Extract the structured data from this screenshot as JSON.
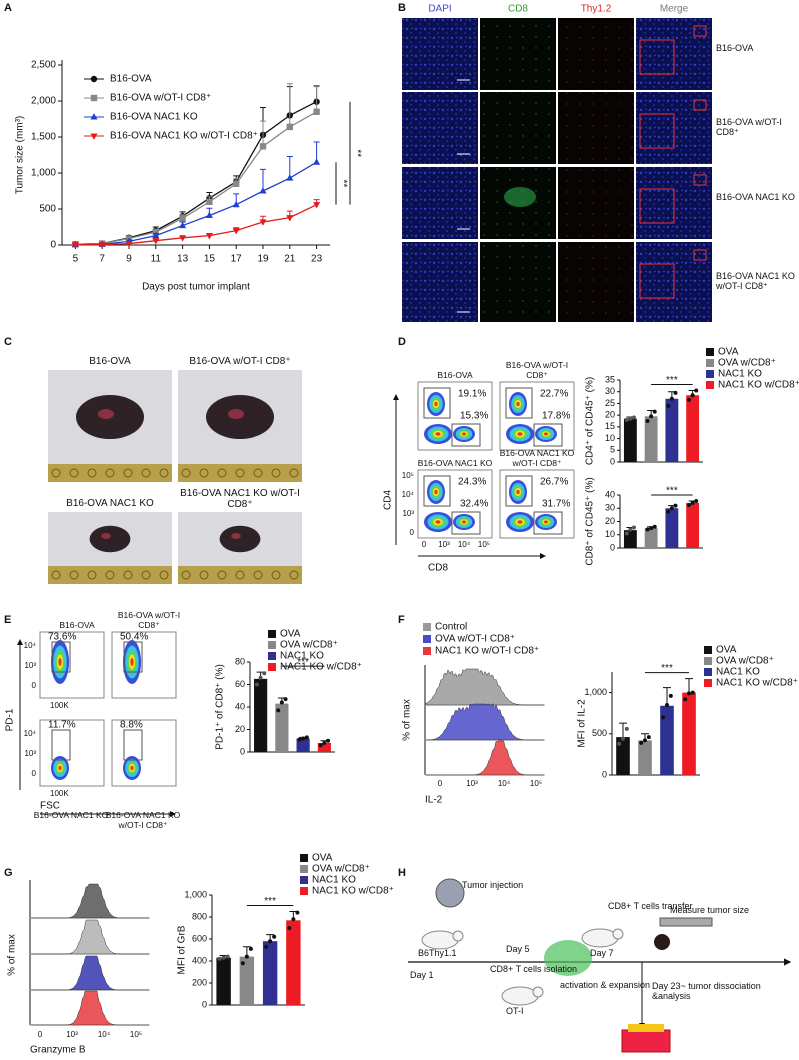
{
  "panels": [
    "A",
    "B",
    "C",
    "D",
    "E",
    "F",
    "G",
    "H"
  ],
  "chart_data": [
    {
      "type": "line",
      "y_label": "Tumor size (mm³)",
      "x_label": "Days post tumor implant",
      "x": [
        5,
        7,
        9,
        11,
        13,
        15,
        17,
        19,
        21,
        23
      ],
      "xlim": [
        4,
        24
      ],
      "xticks": [
        5,
        7,
        9,
        11,
        13,
        15,
        17,
        19,
        21,
        23
      ],
      "ylim": [
        0,
        2500
      ],
      "yticks": [
        0,
        500,
        {
          "value": 1000,
          "label": "1,000"
        },
        {
          "value": 1500,
          "label": "1,500"
        },
        {
          "value": 2000,
          "label": "2,000"
        },
        {
          "value": 2500,
          "label": "2,500"
        }
      ],
      "series": [
        {
          "name": "B16-OVA",
          "color": "#111111",
          "marker": "circle",
          "values": [
            10,
            20,
            100,
            200,
            400,
            650,
            880,
            1530,
            1800,
            1990
          ],
          "errors": [
            5,
            10,
            30,
            50,
            60,
            80,
            80,
            380,
            400,
            220
          ]
        },
        {
          "name": "B16-OVA w/OT-I CD8⁺",
          "color": "#888888",
          "marker": "square",
          "values": [
            10,
            20,
            90,
            180,
            370,
            600,
            850,
            1370,
            1640,
            1850
          ],
          "errors": [
            5,
            10,
            30,
            40,
            50,
            70,
            70,
            350,
            600,
            350
          ]
        },
        {
          "name": "B16-OVA NAC1 KO",
          "color": "#1f3fd1",
          "marker": "triangle",
          "values": [
            5,
            10,
            50,
            130,
            270,
            410,
            560,
            750,
            930,
            1150
          ],
          "errors": [
            5,
            5,
            20,
            30,
            50,
            100,
            150,
            300,
            300,
            280
          ]
        },
        {
          "name": "B16-OVA NAC1 KO w/OT-I CD8⁺",
          "color": "#e41a1c",
          "marker": "triangle-down",
          "values": [
            5,
            5,
            20,
            60,
            100,
            130,
            200,
            320,
            380,
            560
          ],
          "errors": [
            3,
            3,
            10,
            20,
            20,
            30,
            40,
            80,
            90,
            70
          ]
        }
      ],
      "annotations": [
        "**",
        "**"
      ]
    },
    {
      "type": "bar",
      "y_label": "CD4⁺ of CD45⁺ (%)",
      "categories": [
        "OVA",
        "OVA w/CD8⁺",
        "NAC1 KO",
        "NAC1 KO w/CD8⁺"
      ],
      "colors": [
        "#111111",
        "#888888",
        "#2e3192",
        "#ed1c24"
      ],
      "values": [
        18.5,
        19.5,
        27,
        28.5
      ],
      "errors": [
        0.7,
        2.5,
        3,
        2
      ],
      "points": [
        [
          18,
          18.5,
          19
        ],
        [
          17.5,
          19.5,
          21.5
        ],
        [
          24,
          27,
          29.5
        ],
        [
          26.5,
          28.5,
          30.5
        ]
      ],
      "ylim": [
        0,
        35
      ],
      "yticks": [
        0,
        5,
        10,
        15,
        20,
        25,
        30,
        35
      ],
      "annotation": "***"
    },
    {
      "type": "bar",
      "y_label": "CD8⁺ of CD45⁺ (%)",
      "colors": [
        "#111111",
        "#888888",
        "#2e3192",
        "#ed1c24"
      ],
      "values": [
        13.5,
        15,
        30,
        34
      ],
      "errors": [
        2,
        1,
        2,
        1.5
      ],
      "points": [
        [
          11,
          14,
          15.5
        ],
        [
          14,
          15,
          16
        ],
        [
          27.5,
          30,
          32
        ],
        [
          32.5,
          34,
          35.5
        ]
      ],
      "ylim": [
        0,
        40
      ],
      "yticks": [
        0,
        10,
        20,
        30,
        40
      ],
      "annotation": "***"
    },
    {
      "type": "bar",
      "y_label": "PD-1⁺ of CD8⁺ (%)",
      "categories": [
        "OVA",
        "OVA w/CD8⁺",
        "NAC1 KO",
        "NAC1 KO w/CD8⁺"
      ],
      "colors": [
        "#111111",
        "#888888",
        "#2e3192",
        "#ed1c24"
      ],
      "values": [
        65,
        43,
        12,
        8
      ],
      "errors": [
        6,
        5,
        1,
        2
      ],
      "points": [
        [
          60,
          66,
          70
        ],
        [
          37,
          44,
          47
        ],
        [
          11,
          12,
          13
        ],
        [
          6,
          8,
          10
        ]
      ],
      "ylim": [
        0,
        80
      ],
      "yticks": [
        0,
        20,
        40,
        60,
        80
      ],
      "annotation": "***"
    },
    {
      "type": "bar",
      "y_label": "MFI of IL-2",
      "categories": [
        "OVA",
        "OVA w/CD8⁺",
        "NAC1 KO",
        "NAC1 KO w/CD8⁺"
      ],
      "colors": [
        "#111111",
        "#888888",
        "#2e3192",
        "#ed1c24"
      ],
      "values": [
        460,
        420,
        840,
        1000
      ],
      "errors": [
        170,
        80,
        220,
        170
      ],
      "points": [
        [
          380,
          440,
          560
        ],
        [
          390,
          420,
          460
        ],
        [
          700,
          850,
          960
        ],
        [
          920,
          990,
          1000
        ]
      ],
      "ylim": [
        0,
        1250
      ],
      "yticks": [
        0,
        500,
        {
          "value": 1000,
          "label": "1,000"
        }
      ],
      "annotation": "***"
    },
    {
      "type": "bar",
      "y_label": "MFI of GrB",
      "categories": [
        "OVA",
        "OVA w/CD8⁺",
        "NAC1 KO",
        "NAC1 KO w/CD8⁺"
      ],
      "colors": [
        "#111111",
        "#888888",
        "#2e3192",
        "#ed1c24"
      ],
      "values": [
        430,
        440,
        580,
        770
      ],
      "errors": [
        20,
        90,
        60,
        80
      ],
      "points": [
        [
          420,
          430,
          440
        ],
        [
          380,
          440,
          510
        ],
        [
          530,
          580,
          620
        ],
        [
          700,
          780,
          840
        ]
      ],
      "ylim": [
        0,
        1000
      ],
      "yticks": [
        0,
        200,
        400,
        600,
        800,
        {
          "value": 1000,
          "label": "1,000"
        }
      ],
      "annotation": "***"
    }
  ],
  "images": {
    "columns": [
      "DAPI",
      "CD8",
      "Thy1.2",
      "Merge"
    ],
    "column_colors": [
      "#3f48cc",
      "#2ca02c",
      "#d62728",
      "#777777"
    ],
    "rows": [
      "B16-OVA",
      "B16-OVA w/OT-I CD8⁺",
      "B16-OVA NAC1 KO",
      "B16-OVA NAC1 KO w/OT-I CD8⁺"
    ]
  },
  "photos": {
    "labels": [
      "B16-OVA",
      "B16-OVA w/OT-I CD8⁺",
      "B16-OVA NAC1 KO",
      "B16-OVA NAC1 KO w/OT-I CD8⁺"
    ]
  },
  "flow_D": {
    "plots": [
      {
        "title": "B16-OVA",
        "gates": [
          "19.1%",
          "15.3%"
        ]
      },
      {
        "title": "B16-OVA w/OT-I CD8⁺",
        "gates": [
          "22.7%",
          "17.8%"
        ]
      },
      {
        "title": "B16-OVA NAC1 KO",
        "gates": [
          "24.3%",
          "32.4%"
        ]
      },
      {
        "title": "B16-OVA NAC1 KO w/OT-I CD8⁺",
        "gates": [
          "26.7%",
          "31.7%"
        ]
      }
    ],
    "y_label": "CD4",
    "x_label": "CD8",
    "yticks": [
      "10⁵",
      "10⁴",
      "10³",
      "0"
    ],
    "xticks": [
      "0",
      "10³",
      "10⁴",
      "10⁵"
    ]
  },
  "flow_E": {
    "plots": [
      {
        "title": "B16-OVA",
        "gate": "73.6%"
      },
      {
        "title": "B16-OVA w/OT-I CD8⁺",
        "gate": "50.4%"
      },
      {
        "title": "B16-OVA NAC1 KO",
        "gate": "11.7%"
      },
      {
        "title": "B16-OVA NAC1 KO w/OT-I CD8⁺",
        "gate": "8.8%"
      }
    ],
    "y_label": "PD-1",
    "x_label": "FSC",
    "yticks": [
      "10⁴",
      "10³",
      "0"
    ],
    "xtick": "100K"
  },
  "hist_F": {
    "legend": [
      "Control",
      "OVA w/OT-I CD8⁺",
      "NAC1 KO w/OT-I CD8⁺"
    ],
    "colors": [
      "#9a9a9a",
      "#4b4bc8",
      "#e8383d"
    ],
    "y_label": "% of max",
    "x_label": "IL-2",
    "xticks": [
      "0",
      "10³",
      "10⁴",
      "10⁵"
    ]
  },
  "hist_G": {
    "colors": [
      "#555555",
      "#b0b0b0",
      "#3535b0",
      "#e8383d"
    ],
    "y_label": "% of max",
    "x_label": "Granzyme B",
    "xticks": [
      "0",
      "10³",
      "10⁴",
      "10⁵"
    ]
  },
  "diagram": {
    "labels": [
      "Tumor injection",
      "B6Thy1.1",
      "Day 1",
      "Day 5",
      "CD8+ T cells isolation",
      "OT-I",
      "Day 7",
      "CD8+ T cells transfer",
      "Measure tumor size",
      "activation & expansion",
      "Day 23~  tumor dissociation &analysis"
    ]
  }
}
